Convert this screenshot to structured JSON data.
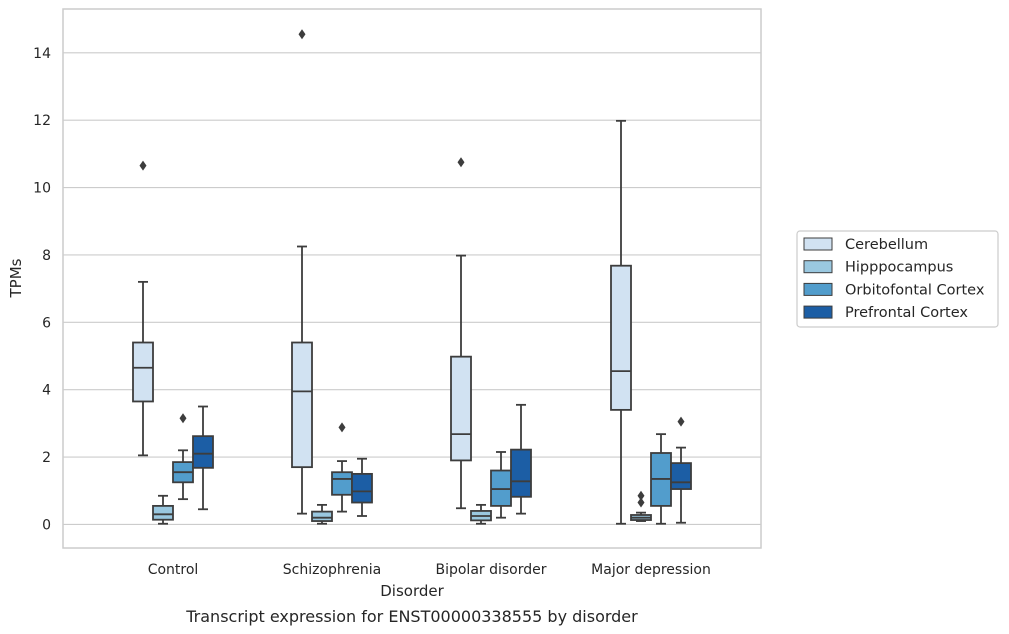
{
  "caption": "Transcript expression for ENST00000338555 by disorder",
  "chart_data": {
    "type": "box",
    "xlabel": "Disorder",
    "ylabel": "TPMs",
    "ylim": [
      -0.7,
      15.3
    ],
    "yticks": [
      0,
      2,
      4,
      6,
      8,
      10,
      12,
      14
    ],
    "grid": "horizontal",
    "legend_position": "right",
    "categories": [
      "Control",
      "Schizophrenia",
      "Bipolar disorder",
      "Major depression"
    ],
    "series": [
      {
        "name": "Cerebellum",
        "color": "#d1e2f2",
        "boxes": [
          {
            "whisker_low": 2.05,
            "q1": 3.65,
            "median": 4.65,
            "q3": 5.4,
            "whisker_high": 7.2,
            "outliers": [
              10.65
            ]
          },
          {
            "whisker_low": 0.32,
            "q1": 1.7,
            "median": 3.95,
            "q3": 5.4,
            "whisker_high": 8.25,
            "outliers": [
              14.55
            ]
          },
          {
            "whisker_low": 0.48,
            "q1": 1.9,
            "median": 2.68,
            "q3": 4.98,
            "whisker_high": 7.98,
            "outliers": [
              10.75
            ]
          },
          {
            "whisker_low": 0.02,
            "q1": 3.4,
            "median": 4.55,
            "q3": 7.68,
            "whisker_high": 11.98,
            "outliers": []
          }
        ]
      },
      {
        "name": "Hipppocampus",
        "color": "#9ac8e0",
        "boxes": [
          {
            "whisker_low": 0.02,
            "q1": 0.14,
            "median": 0.3,
            "q3": 0.55,
            "whisker_high": 0.85,
            "outliers": []
          },
          {
            "whisker_low": 0.02,
            "q1": 0.1,
            "median": 0.2,
            "q3": 0.38,
            "whisker_high": 0.58,
            "outliers": []
          },
          {
            "whisker_low": 0.02,
            "q1": 0.12,
            "median": 0.25,
            "q3": 0.4,
            "whisker_high": 0.58,
            "outliers": []
          },
          {
            "whisker_low": 0.1,
            "q1": 0.13,
            "median": 0.2,
            "q3": 0.28,
            "whisker_high": 0.35,
            "outliers": [
              0.65,
              0.85
            ]
          }
        ]
      },
      {
        "name": "Orbitofontal Cortex",
        "color": "#529dcc",
        "boxes": [
          {
            "whisker_low": 0.75,
            "q1": 1.25,
            "median": 1.55,
            "q3": 1.85,
            "whisker_high": 2.2,
            "outliers": [
              3.15
            ]
          },
          {
            "whisker_low": 0.38,
            "q1": 0.88,
            "median": 1.35,
            "q3": 1.55,
            "whisker_high": 1.88,
            "outliers": [
              2.88
            ]
          },
          {
            "whisker_low": 0.2,
            "q1": 0.55,
            "median": 1.05,
            "q3": 1.6,
            "whisker_high": 2.15,
            "outliers": []
          },
          {
            "whisker_low": 0.02,
            "q1": 0.55,
            "median": 1.35,
            "q3": 2.12,
            "whisker_high": 2.68,
            "outliers": []
          }
        ]
      },
      {
        "name": "Prefrontal Cortex",
        "color": "#1c5ea5",
        "boxes": [
          {
            "whisker_low": 0.45,
            "q1": 1.68,
            "median": 2.1,
            "q3": 2.62,
            "whisker_high": 3.5,
            "outliers": []
          },
          {
            "whisker_low": 0.25,
            "q1": 0.65,
            "median": 0.98,
            "q3": 1.5,
            "whisker_high": 1.95,
            "outliers": []
          },
          {
            "whisker_low": 0.32,
            "q1": 0.82,
            "median": 1.28,
            "q3": 2.22,
            "whisker_high": 3.55,
            "outliers": []
          },
          {
            "whisker_low": 0.05,
            "q1": 1.05,
            "median": 1.25,
            "q3": 1.82,
            "whisker_high": 2.28,
            "outliers": [
              3.05
            ]
          }
        ]
      }
    ]
  }
}
